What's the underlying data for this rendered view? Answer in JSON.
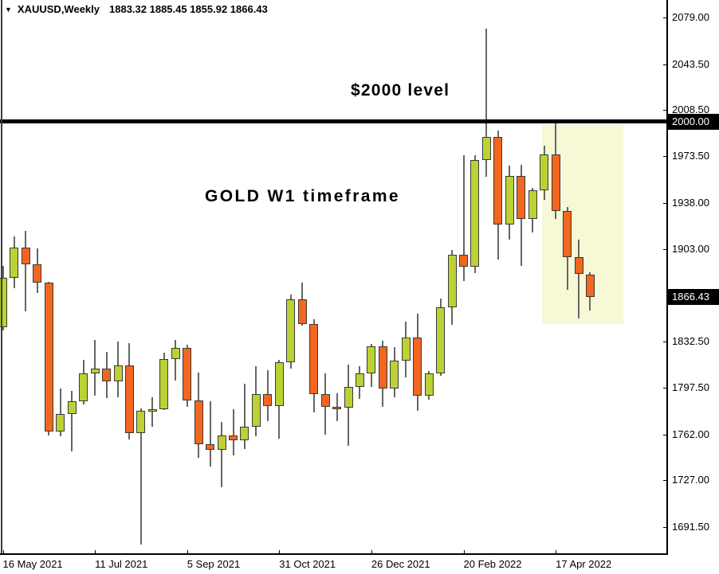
{
  "header": {
    "dropdown_icon": "▼",
    "symbol": "XAUUSD,Weekly",
    "ohlc": "1883.32 1885.45 1855.92 1866.43"
  },
  "annotations": {
    "level_label": "$2000 level",
    "timeframe_label": "GOLD W1 timeframe"
  },
  "price_axis": {
    "labels": [
      {
        "text": "2079.00",
        "value": 2079.0
      },
      {
        "text": "2043.50",
        "value": 2043.5
      },
      {
        "text": "2008.50",
        "value": 2008.5
      },
      {
        "text": "1973.50",
        "value": 1973.5
      },
      {
        "text": "1938.00",
        "value": 1938.0
      },
      {
        "text": "1903.00",
        "value": 1903.0
      },
      {
        "text": "1832.50",
        "value": 1832.5
      },
      {
        "text": "1797.50",
        "value": 1797.5
      },
      {
        "text": "1762.00",
        "value": 1762.0
      },
      {
        "text": "1727.00",
        "value": 1727.0
      },
      {
        "text": "1691.50",
        "value": 1691.5
      }
    ],
    "level_badge": {
      "text": "2000.00",
      "value": 2000.0
    },
    "current_badge": {
      "text": "1866.43",
      "value": 1866.43
    }
  },
  "time_axis": {
    "labels": [
      {
        "text": "16 May 2021",
        "candle_index": 0
      },
      {
        "text": "11 Jul 2021",
        "candle_index": 8
      },
      {
        "text": "5 Sep 2021",
        "candle_index": 16
      },
      {
        "text": "31 Oct 2021",
        "candle_index": 24
      },
      {
        "text": "26 Dec 2021",
        "candle_index": 32
      },
      {
        "text": "20 Feb 2022",
        "candle_index": 40
      },
      {
        "text": "17 Apr 2022",
        "candle_index": 48
      }
    ]
  },
  "level_line": {
    "price": 2000.0
  },
  "highlight_region": {
    "start_candle": 46.8,
    "end_candle": 53.9,
    "top_price": 1997.3,
    "bottom_price": 1845.9
  },
  "colors": {
    "bull": "#bcd133",
    "bear": "#f2661f",
    "candle_border": "#3a3a3a",
    "wick": "#666666",
    "background": "#ffffff",
    "axis": "#000000",
    "level_line": "#000000",
    "badge_bg": "#000000",
    "badge_text": "#ffffff",
    "highlight": "#f7f8d6",
    "text": "#000000"
  },
  "chart_data": {
    "type": "candlestick",
    "symbol": "XAUUSD",
    "timeframe": "W1 (Weekly)",
    "title": "GOLD W1 timeframe",
    "current_ohlc": {
      "open": 1883.32,
      "high": 1885.45,
      "low": 1855.92,
      "close": 1866.43
    },
    "ylim": [
      1674,
      2092
    ],
    "horizontal_level": 2000.0,
    "legend_position": "none",
    "grid": false,
    "candles": [
      {
        "week": "16 May 2021",
        "o": 1843.5,
        "h": 1890.1,
        "l": 1841.0,
        "c": 1881.3
      },
      {
        "week": "23 May 2021",
        "o": 1881.3,
        "h": 1912.5,
        "l": 1873.4,
        "c": 1903.8
      },
      {
        "week": "30 May 2021",
        "o": 1903.8,
        "h": 1916.6,
        "l": 1855.6,
        "c": 1891.6
      },
      {
        "week": "6 Jun 2021",
        "o": 1891.6,
        "h": 1903.7,
        "l": 1869.7,
        "c": 1877.6
      },
      {
        "week": "13 Jun 2021",
        "o": 1877.6,
        "h": 1878.0,
        "l": 1761.1,
        "c": 1764.2
      },
      {
        "week": "20 Jun 2021",
        "o": 1764.2,
        "h": 1797.0,
        "l": 1760.7,
        "c": 1777.4
      },
      {
        "week": "27 Jun 2021",
        "o": 1777.4,
        "h": 1794.9,
        "l": 1749.2,
        "c": 1787.3
      },
      {
        "week": "4 Jul 2021",
        "o": 1787.3,
        "h": 1818.9,
        "l": 1784.8,
        "c": 1808.3
      },
      {
        "week": "11 Jul 2021",
        "o": 1808.3,
        "h": 1834.1,
        "l": 1791.3,
        "c": 1812.1
      },
      {
        "week": "18 Jul 2021",
        "o": 1812.1,
        "h": 1825.0,
        "l": 1789.8,
        "c": 1802.1
      },
      {
        "week": "25 Jul 2021",
        "o": 1802.1,
        "h": 1832.7,
        "l": 1790.5,
        "c": 1814.2
      },
      {
        "week": "1 Aug 2021",
        "o": 1814.2,
        "h": 1831.6,
        "l": 1758.0,
        "c": 1763.0
      },
      {
        "week": "8 Aug 2021",
        "o": 1763.0,
        "h": 1782.0,
        "l": 1677.9,
        "c": 1779.7
      },
      {
        "week": "15 Aug 2021",
        "o": 1779.7,
        "h": 1790.1,
        "l": 1768.0,
        "c": 1781.1
      },
      {
        "week": "22 Aug 2021",
        "o": 1781.1,
        "h": 1823.9,
        "l": 1780.6,
        "c": 1819.5
      },
      {
        "week": "29 Aug 2021",
        "o": 1819.5,
        "h": 1834.0,
        "l": 1803.0,
        "c": 1827.7
      },
      {
        "week": "5 Sep 2021",
        "o": 1827.7,
        "h": 1830.0,
        "l": 1783.0,
        "c": 1787.6
      },
      {
        "week": "12 Sep 2021",
        "o": 1787.6,
        "h": 1808.7,
        "l": 1744.3,
        "c": 1754.3
      },
      {
        "week": "19 Sep 2021",
        "o": 1754.3,
        "h": 1787.4,
        "l": 1737.8,
        "c": 1750.4
      },
      {
        "week": "26 Sep 2021",
        "o": 1750.4,
        "h": 1771.6,
        "l": 1721.7,
        "c": 1761.0
      },
      {
        "week": "3 Oct 2021",
        "o": 1761.0,
        "h": 1781.3,
        "l": 1746.0,
        "c": 1757.2
      },
      {
        "week": "10 Oct 2021",
        "o": 1757.2,
        "h": 1800.6,
        "l": 1750.8,
        "c": 1767.5
      },
      {
        "week": "17 Oct 2021",
        "o": 1767.5,
        "h": 1813.8,
        "l": 1760.5,
        "c": 1792.6
      },
      {
        "week": "24 Oct 2021",
        "o": 1792.6,
        "h": 1810.5,
        "l": 1772.3,
        "c": 1783.3
      },
      {
        "week": "31 Oct 2021",
        "o": 1783.3,
        "h": 1818.4,
        "l": 1758.8,
        "c": 1816.6
      },
      {
        "week": "7 Nov 2021",
        "o": 1816.6,
        "h": 1868.6,
        "l": 1812.2,
        "c": 1864.9
      },
      {
        "week": "14 Nov 2021",
        "o": 1864.9,
        "h": 1877.1,
        "l": 1844.6,
        "c": 1845.7
      },
      {
        "week": "21 Nov 2021",
        "o": 1845.7,
        "h": 1849.4,
        "l": 1778.6,
        "c": 1792.4
      },
      {
        "week": "28 Nov 2021",
        "o": 1792.4,
        "h": 1808.4,
        "l": 1761.9,
        "c": 1783.2
      },
      {
        "week": "5 Dec 2021",
        "o": 1783.2,
        "h": 1793.2,
        "l": 1772.1,
        "c": 1782.6
      },
      {
        "week": "12 Dec 2021",
        "o": 1782.6,
        "h": 1815.0,
        "l": 1753.0,
        "c": 1798.1
      },
      {
        "week": "19 Dec 2021",
        "o": 1798.1,
        "h": 1814.0,
        "l": 1789.0,
        "c": 1808.2
      },
      {
        "week": "26 Dec 2021",
        "o": 1808.2,
        "h": 1831.0,
        "l": 1798.0,
        "c": 1829.2
      },
      {
        "week": "2 Jan 2022",
        "o": 1829.2,
        "h": 1833.0,
        "l": 1782.7,
        "c": 1796.6
      },
      {
        "week": "9 Jan 2022",
        "o": 1796.6,
        "h": 1828.5,
        "l": 1790.2,
        "c": 1817.9
      },
      {
        "week": "16 Jan 2022",
        "o": 1817.9,
        "h": 1847.7,
        "l": 1805.1,
        "c": 1835.4
      },
      {
        "week": "23 Jan 2022",
        "o": 1835.4,
        "h": 1853.9,
        "l": 1779.8,
        "c": 1791.5
      },
      {
        "week": "30 Jan 2022",
        "o": 1791.5,
        "h": 1810.4,
        "l": 1788.3,
        "c": 1808.3
      },
      {
        "week": "6 Feb 2022",
        "o": 1808.3,
        "h": 1865.5,
        "l": 1806.8,
        "c": 1858.8
      },
      {
        "week": "13 Feb 2022",
        "o": 1858.8,
        "h": 1902.3,
        "l": 1845.4,
        "c": 1898.4
      },
      {
        "week": "20 Feb 2022",
        "o": 1898.4,
        "h": 1974.3,
        "l": 1878.4,
        "c": 1889.3
      },
      {
        "week": "27 Feb 2022",
        "o": 1889.3,
        "h": 1974.1,
        "l": 1884.9,
        "c": 1970.7
      },
      {
        "week": "6 Mar 2022",
        "o": 1970.7,
        "h": 2070.4,
        "l": 1958.0,
        "c": 1988.2
      },
      {
        "week": "13 Mar 2022",
        "o": 1988.2,
        "h": 1993.0,
        "l": 1895.2,
        "c": 1921.6
      },
      {
        "week": "20 Mar 2022",
        "o": 1921.6,
        "h": 1966.6,
        "l": 1910.2,
        "c": 1958.3
      },
      {
        "week": "27 Mar 2022",
        "o": 1958.3,
        "h": 1966.9,
        "l": 1889.9,
        "c": 1925.6
      },
      {
        "week": "3 Apr 2022",
        "o": 1925.6,
        "h": 1949.2,
        "l": 1915.5,
        "c": 1947.5
      },
      {
        "week": "10 Apr 2022",
        "o": 1947.5,
        "h": 1981.6,
        "l": 1940.2,
        "c": 1974.9
      },
      {
        "week": "17 Apr 2022",
        "o": 1974.9,
        "h": 1998.4,
        "l": 1926.0,
        "c": 1931.6
      },
      {
        "week": "24 Apr 2022",
        "o": 1931.6,
        "h": 1935.2,
        "l": 1871.8,
        "c": 1896.9
      },
      {
        "week": "1 May 2022",
        "o": 1896.9,
        "h": 1909.8,
        "l": 1850.4,
        "c": 1883.8
      },
      {
        "week": "8 May 2022",
        "o": 1883.32,
        "h": 1885.45,
        "l": 1855.92,
        "c": 1866.43
      }
    ]
  }
}
